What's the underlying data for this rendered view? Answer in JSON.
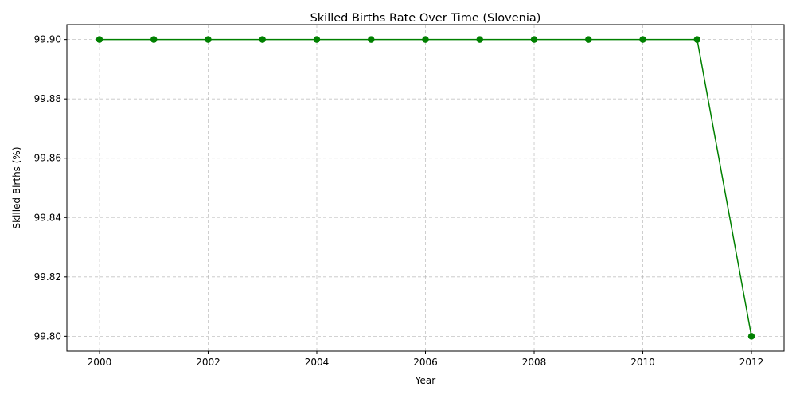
{
  "chart_data": {
    "type": "line",
    "title": "Skilled Births Rate Over Time (Slovenia)",
    "xlabel": "Year",
    "ylabel": "Skilled Births (%)",
    "xlim": [
      1999.4,
      2012.6
    ],
    "ylim": [
      99.795,
      99.905
    ],
    "xticks": [
      2000,
      2002,
      2004,
      2006,
      2008,
      2010,
      2012
    ],
    "xtick_labels": [
      "2000",
      "2002",
      "2004",
      "2006",
      "2008",
      "2010",
      "2012"
    ],
    "yticks": [
      99.8,
      99.82,
      99.84,
      99.86,
      99.88,
      99.9
    ],
    "ytick_labels": [
      "99.80",
      "99.82",
      "99.84",
      "99.86",
      "99.88",
      "99.90"
    ],
    "grid": true,
    "series": [
      {
        "color": "#008000",
        "marker": "circle",
        "x": [
          2000,
          2001,
          2002,
          2003,
          2004,
          2005,
          2006,
          2007,
          2008,
          2009,
          2010,
          2011,
          2012
        ],
        "y": [
          99.9,
          99.9,
          99.9,
          99.9,
          99.9,
          99.9,
          99.9,
          99.9,
          99.9,
          99.9,
          99.9,
          99.9,
          99.8
        ]
      }
    ]
  }
}
